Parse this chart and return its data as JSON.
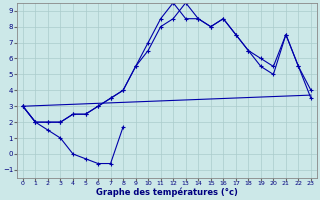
{
  "title": "Graphe des températures (°c)",
  "background_color": "#cce8e8",
  "grid_color": "#aacccc",
  "line_color": "#0000aa",
  "xlim": [
    -0.5,
    23.5
  ],
  "ylim": [
    -1.5,
    9.5
  ],
  "xticks": [
    0,
    1,
    2,
    3,
    4,
    5,
    6,
    7,
    8,
    9,
    10,
    11,
    12,
    13,
    14,
    15,
    16,
    17,
    18,
    19,
    20,
    21,
    22,
    23
  ],
  "yticks": [
    -1,
    0,
    1,
    2,
    3,
    4,
    5,
    6,
    7,
    8,
    9
  ],
  "line1_x": [
    0,
    1,
    2,
    3,
    4,
    5,
    6,
    7,
    8
  ],
  "line1_y": [
    3.0,
    2.0,
    1.5,
    1.0,
    0.0,
    -0.3,
    -0.6,
    -0.6,
    1.7
  ],
  "line2_x": [
    0,
    1,
    2,
    3,
    4,
    5,
    6,
    7,
    8,
    9,
    10,
    11,
    12,
    13,
    14,
    15,
    16,
    17,
    18,
    19,
    20,
    21,
    22,
    23
  ],
  "line2_y": [
    3.0,
    2.0,
    2.0,
    2.0,
    2.5,
    2.5,
    3.0,
    3.5,
    4.0,
    5.5,
    6.5,
    8.0,
    8.5,
    9.5,
    8.5,
    8.0,
    8.5,
    7.5,
    6.5,
    6.0,
    5.5,
    7.5,
    5.5,
    3.5
  ],
  "line3_x": [
    0,
    23
  ],
  "line3_y": [
    3.0,
    3.7
  ],
  "line4_x": [
    0,
    1,
    2,
    3,
    4,
    5,
    6,
    7,
    8,
    9,
    10,
    11,
    12,
    13,
    14,
    15,
    16,
    17,
    18,
    19,
    20,
    21,
    22,
    23
  ],
  "line4_y": [
    3.0,
    2.0,
    2.0,
    2.0,
    2.5,
    2.5,
    3.0,
    3.5,
    4.0,
    5.5,
    7.0,
    8.5,
    9.5,
    8.5,
    8.5,
    8.0,
    8.5,
    7.5,
    6.5,
    5.5,
    5.0,
    7.5,
    5.5,
    4.0
  ]
}
